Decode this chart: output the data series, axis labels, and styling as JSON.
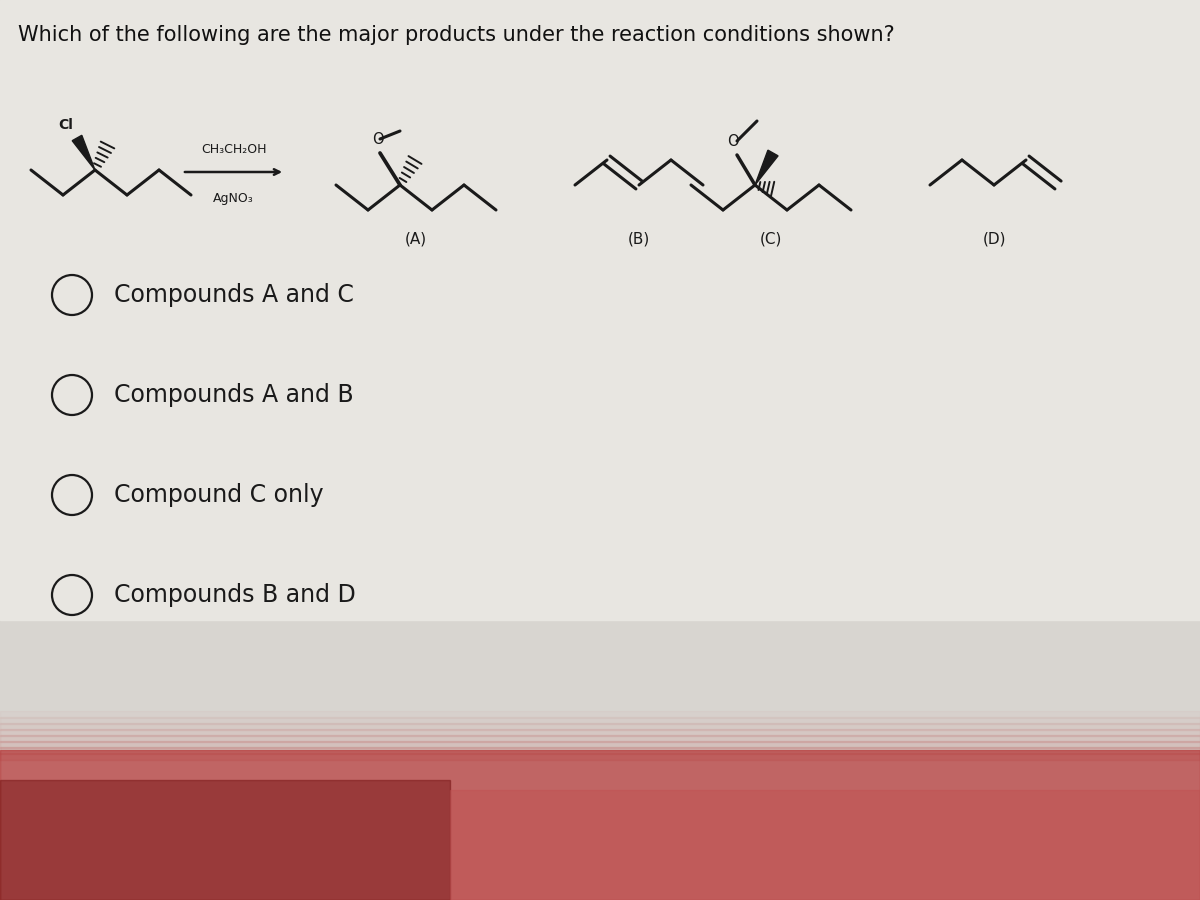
{
  "title": "Which of the following are the major products under the reaction conditions shown?",
  "title_fontsize": 15,
  "background_color": "#d8d5d0",
  "reagent_line1": "CH₃CH₂OH",
  "reagent_line2": "AgNO₃",
  "label_A": "(A)",
  "label_B": "(B)",
  "label_C": "(C)",
  "label_D": "(D)",
  "choices": [
    "Compounds A and C",
    "Compounds A and B",
    "Compound C only",
    "Compounds B and D"
  ],
  "text_color": "#1a1a1a",
  "line_color": "#1a1a1a",
  "title_color": "#111111",
  "bottom_red1": "#b84040",
  "bottom_red2": "#8b2020",
  "choice_fontsize": 17,
  "label_fontsize": 11
}
